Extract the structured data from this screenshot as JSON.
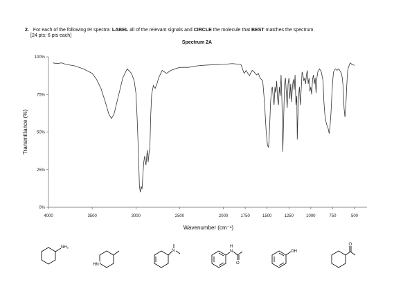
{
  "question": {
    "number": "2.",
    "text_parts": [
      "For each of the following IR spectra: ",
      "LABEL",
      " all of the relevant signals and ",
      "CIRCLE",
      " the molecule that ",
      "BEST",
      " matches the spectrum."
    ],
    "points": "[24 pts; 6 pts each]"
  },
  "chart_data": {
    "type": "line",
    "title": "Spectrum 2A",
    "xlabel": "Wavenumber (cm⁻¹)",
    "ylabel": "Transmittance (%)",
    "xlim": [
      4000,
      500
    ],
    "ylim": [
      0,
      100
    ],
    "x_reversed": true,
    "x_ticks": [
      "4000",
      "3500",
      "3000",
      "2500",
      "2000",
      "1750",
      "1500",
      "1250",
      "1000",
      "750",
      "500"
    ],
    "y_ticks": [
      "0%",
      "25%",
      "50%",
      "75%",
      "100%"
    ],
    "grid": false,
    "series": [
      {
        "points": [
          [
            3950,
            96
          ],
          [
            3900,
            95.5
          ],
          [
            3850,
            96
          ],
          [
            3800,
            95
          ],
          [
            3700,
            94
          ],
          [
            3600,
            92
          ],
          [
            3500,
            89
          ],
          [
            3450,
            85
          ],
          [
            3400,
            79
          ],
          [
            3350,
            70
          ],
          [
            3310,
            62
          ],
          [
            3280,
            59
          ],
          [
            3250,
            62
          ],
          [
            3200,
            74
          ],
          [
            3150,
            86
          ],
          [
            3100,
            92
          ],
          [
            3050,
            89
          ],
          [
            3020,
            84
          ],
          [
            3000,
            76
          ],
          [
            2985,
            58
          ],
          [
            2970,
            34
          ],
          [
            2960,
            14
          ],
          [
            2950,
            10
          ],
          [
            2940,
            14
          ],
          [
            2930,
            12
          ],
          [
            2920,
            22
          ],
          [
            2910,
            30
          ],
          [
            2900,
            34
          ],
          [
            2885,
            28
          ],
          [
            2870,
            38
          ],
          [
            2860,
            30
          ],
          [
            2850,
            36
          ],
          [
            2840,
            40
          ],
          [
            2830,
            62
          ],
          [
            2820,
            75
          ],
          [
            2800,
            81
          ],
          [
            2780,
            79
          ],
          [
            2760,
            82
          ],
          [
            2740,
            86
          ],
          [
            2700,
            91
          ],
          [
            2650,
            89
          ],
          [
            2600,
            91
          ],
          [
            2500,
            93
          ],
          [
            2400,
            93
          ],
          [
            2300,
            94
          ],
          [
            2200,
            94.5
          ],
          [
            2000,
            95
          ],
          [
            1900,
            95.5
          ],
          [
            1800,
            95
          ],
          [
            1780,
            92
          ],
          [
            1770,
            90
          ],
          [
            1760,
            89
          ],
          [
            1750,
            90
          ],
          [
            1740,
            91
          ],
          [
            1720,
            89
          ],
          [
            1700,
            87.5
          ],
          [
            1690,
            89
          ],
          [
            1670,
            91
          ],
          [
            1650,
            90
          ],
          [
            1620,
            88
          ],
          [
            1600,
            89
          ],
          [
            1580,
            86
          ],
          [
            1550,
            84
          ],
          [
            1530,
            70
          ],
          [
            1510,
            50
          ],
          [
            1495,
            41
          ],
          [
            1485,
            40
          ],
          [
            1478,
            44
          ],
          [
            1470,
            55
          ],
          [
            1460,
            70
          ],
          [
            1450,
            78
          ],
          [
            1440,
            80
          ],
          [
            1430,
            73
          ],
          [
            1420,
            68
          ],
          [
            1410,
            80
          ],
          [
            1400,
            76
          ],
          [
            1390,
            84
          ],
          [
            1380,
            72
          ],
          [
            1370,
            68
          ],
          [
            1360,
            80
          ],
          [
            1350,
            74
          ],
          [
            1340,
            88
          ],
          [
            1330,
            70
          ],
          [
            1320,
            37
          ],
          [
            1310,
            60
          ],
          [
            1300,
            82
          ],
          [
            1290,
            86
          ],
          [
            1280,
            76
          ],
          [
            1270,
            66
          ],
          [
            1260,
            82
          ],
          [
            1250,
            86
          ],
          [
            1240,
            72
          ],
          [
            1230,
            82
          ],
          [
            1220,
            70
          ],
          [
            1210,
            80
          ],
          [
            1200,
            85
          ],
          [
            1190,
            78
          ],
          [
            1180,
            88
          ],
          [
            1170,
            68
          ],
          [
            1160,
            74
          ],
          [
            1155,
            45
          ],
          [
            1150,
            56
          ],
          [
            1140,
            74
          ],
          [
            1130,
            80
          ],
          [
            1120,
            68
          ],
          [
            1110,
            78
          ],
          [
            1100,
            90
          ],
          [
            1090,
            88
          ],
          [
            1080,
            84
          ],
          [
            1070,
            86
          ],
          [
            1060,
            82
          ],
          [
            1050,
            88
          ],
          [
            1040,
            91
          ],
          [
            1030,
            82
          ],
          [
            1020,
            86
          ],
          [
            1010,
            77
          ],
          [
            1000,
            80
          ],
          [
            990,
            75
          ],
          [
            980,
            85
          ],
          [
            970,
            88
          ],
          [
            960,
            82
          ],
          [
            950,
            86
          ],
          [
            940,
            76
          ],
          [
            930,
            86
          ],
          [
            920,
            90
          ],
          [
            910,
            91
          ],
          [
            900,
            92
          ],
          [
            880,
            90
          ],
          [
            860,
            84
          ],
          [
            850,
            70
          ],
          [
            840,
            62
          ],
          [
            830,
            58
          ],
          [
            820,
            55
          ],
          [
            810,
            54
          ],
          [
            800,
            52
          ],
          [
            790,
            49
          ],
          [
            780,
            54
          ],
          [
            770,
            62
          ],
          [
            760,
            74
          ],
          [
            750,
            84
          ],
          [
            740,
            90
          ],
          [
            720,
            92
          ],
          [
            700,
            91
          ],
          [
            680,
            92
          ],
          [
            660,
            90
          ],
          [
            650,
            89
          ],
          [
            640,
            86
          ],
          [
            630,
            80
          ],
          [
            620,
            66
          ],
          [
            610,
            60
          ],
          [
            600,
            66
          ],
          [
            590,
            80
          ],
          [
            580,
            90
          ],
          [
            570,
            93
          ],
          [
            550,
            96
          ],
          [
            530,
            95
          ],
          [
            510,
            94.5
          ],
          [
            500,
            94.5
          ]
        ]
      }
    ]
  },
  "molecules": [
    {
      "name": "cyclohexylamine",
      "label": "NH₂"
    },
    {
      "name": "4-methylpiperidine",
      "label": "HN"
    },
    {
      "name": "N,N-dimethylcyclohexenylamine",
      "label": "N"
    },
    {
      "name": "acetanilide",
      "label_h": "H",
      "label_n": "N",
      "label_o": "O"
    },
    {
      "name": "phenol",
      "label": "OH"
    },
    {
      "name": "cyclohexyl-methyl-ketone",
      "label": "O"
    }
  ]
}
